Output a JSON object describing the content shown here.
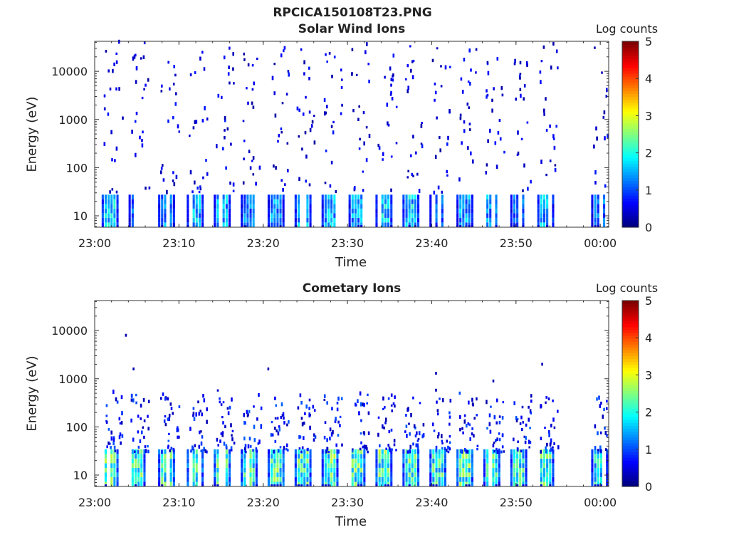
{
  "figure": {
    "title": "RPCICA150108T23.PNG"
  },
  "colorbar": {
    "label": "Log counts",
    "ticks": [
      "0",
      "1",
      "2",
      "3",
      "4",
      "5"
    ],
    "range": [
      0,
      5
    ],
    "colormap": "jet"
  },
  "chart_data": [
    {
      "type": "heatmap",
      "title": "Solar Wind Ions",
      "xlabel": "Time",
      "ylabel": "Energy (eV)",
      "xticks": [
        "23:00",
        "23:10",
        "23:20",
        "23:30",
        "23:40",
        "23:50",
        "00:00"
      ],
      "xlim_minutes": [
        0,
        61
      ],
      "yscale": "log",
      "ylim": [
        5.8,
        42000
      ],
      "yticks": [
        "10",
        "100",
        "1000",
        "10000"
      ],
      "colorbar_label": "Log counts",
      "clim": [
        0,
        5
      ],
      "sweep_bursts": [
        {
          "t": 1.7,
          "peak_log_counts": 2.3
        },
        {
          "t": 4.9,
          "peak_log_counts": 1.5
        },
        {
          "t": 8.4,
          "peak_log_counts": 1.8
        },
        {
          "t": 11.8,
          "peak_log_counts": 2.1
        },
        {
          "t": 15.0,
          "peak_log_counts": 2.0
        },
        {
          "t": 18.2,
          "peak_log_counts": 1.6
        },
        {
          "t": 21.4,
          "peak_log_counts": 1.8
        },
        {
          "t": 24.6,
          "peak_log_counts": 2.0
        },
        {
          "t": 27.8,
          "peak_log_counts": 2.0
        },
        {
          "t": 31.0,
          "peak_log_counts": 1.9
        },
        {
          "t": 34.2,
          "peak_log_counts": 2.2
        },
        {
          "t": 37.4,
          "peak_log_counts": 2.2
        },
        {
          "t": 40.6,
          "peak_log_counts": 1.4
        },
        {
          "t": 43.8,
          "peak_log_counts": 1.9
        },
        {
          "t": 47.0,
          "peak_log_counts": 1.8
        },
        {
          "t": 50.2,
          "peak_log_counts": 1.6
        },
        {
          "t": 53.4,
          "peak_log_counts": 2.0
        },
        {
          "t": 59.8,
          "peak_log_counts": 1.6
        }
      ],
      "notes_energy_band_eV": [
        8,
        26
      ],
      "sparse_high_energy_counts": true
    },
    {
      "type": "heatmap",
      "title": "Cometary Ions",
      "xlabel": "Time",
      "ylabel": "Energy (eV)",
      "xticks": [
        "23:00",
        "23:10",
        "23:20",
        "23:30",
        "23:40",
        "23:50",
        "00:00"
      ],
      "xlim_minutes": [
        0,
        61
      ],
      "yscale": "log",
      "ylim": [
        5.8,
        42000
      ],
      "yticks": [
        "10",
        "100",
        "1000",
        "10000"
      ],
      "colorbar_label": "Log counts",
      "clim": [
        0,
        5
      ],
      "sweep_bursts": [
        {
          "t": 1.7,
          "peak_log_counts": 2.9
        },
        {
          "t": 4.9,
          "peak_log_counts": 2.8
        },
        {
          "t": 8.4,
          "peak_log_counts": 2.7
        },
        {
          "t": 11.8,
          "peak_log_counts": 2.8
        },
        {
          "t": 15.0,
          "peak_log_counts": 2.8
        },
        {
          "t": 18.2,
          "peak_log_counts": 2.7
        },
        {
          "t": 21.4,
          "peak_log_counts": 2.8
        },
        {
          "t": 24.6,
          "peak_log_counts": 2.8
        },
        {
          "t": 27.8,
          "peak_log_counts": 2.9
        },
        {
          "t": 31.0,
          "peak_log_counts": 2.8
        },
        {
          "t": 34.2,
          "peak_log_counts": 2.9
        },
        {
          "t": 37.4,
          "peak_log_counts": 2.8
        },
        {
          "t": 40.6,
          "peak_log_counts": 2.7
        },
        {
          "t": 43.8,
          "peak_log_counts": 2.9
        },
        {
          "t": 47.0,
          "peak_log_counts": 2.8
        },
        {
          "t": 50.2,
          "peak_log_counts": 2.7
        },
        {
          "t": 53.4,
          "peak_log_counts": 2.8
        },
        {
          "t": 59.8,
          "peak_log_counts": 2.4
        }
      ],
      "notes_energy_band_eV": [
        8,
        28
      ],
      "sparse_high_energy_counts": true
    }
  ]
}
